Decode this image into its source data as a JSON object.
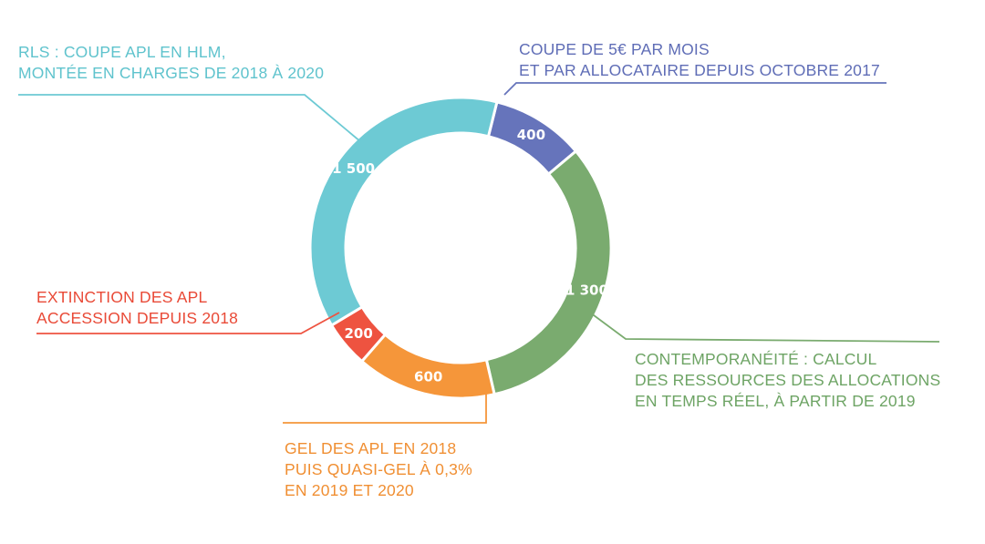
{
  "chart_data": {
    "type": "pie",
    "donut": true,
    "slices": [
      {
        "key": "coupe5",
        "value": 400,
        "value_label": "400",
        "color": "#6674bb",
        "label_lines": [
          "COUPE DE 5€ PAR MOIS",
          "ET PAR ALLOCATAIRE  DEPUIS OCTOBRE 2017"
        ]
      },
      {
        "key": "contemporaneite",
        "value": 1300,
        "value_label": "1 300",
        "color": "#7aab6f",
        "label_lines": [
          "CONTEMPORANÉITÉ : CALCUL",
          "DES RESSOURCES DES ALLOCATIONS",
          "EN TEMPS RÉEL, À PARTIR DE 2019"
        ]
      },
      {
        "key": "gel",
        "value": 600,
        "value_label": "600",
        "color": "#f5963a",
        "label_lines": [
          "GEL DES APL EN 2018",
          "PUIS QUASI-GEL À 0,3%",
          "EN 2019 ET 2020"
        ]
      },
      {
        "key": "extinction",
        "value": 200,
        "value_label": "200",
        "color": "#ee5340",
        "label_lines": [
          "EXTINCTION DES APL",
          "ACCESSION DEPUIS 2018"
        ]
      },
      {
        "key": "rls",
        "value": 1500,
        "value_label": "1 500",
        "color": "#6dcad4",
        "label_lines": [
          "RLS : COUPE APL EN HLM,",
          "MONTÉE EN CHARGES DE 2018 À 2020"
        ]
      }
    ]
  }
}
